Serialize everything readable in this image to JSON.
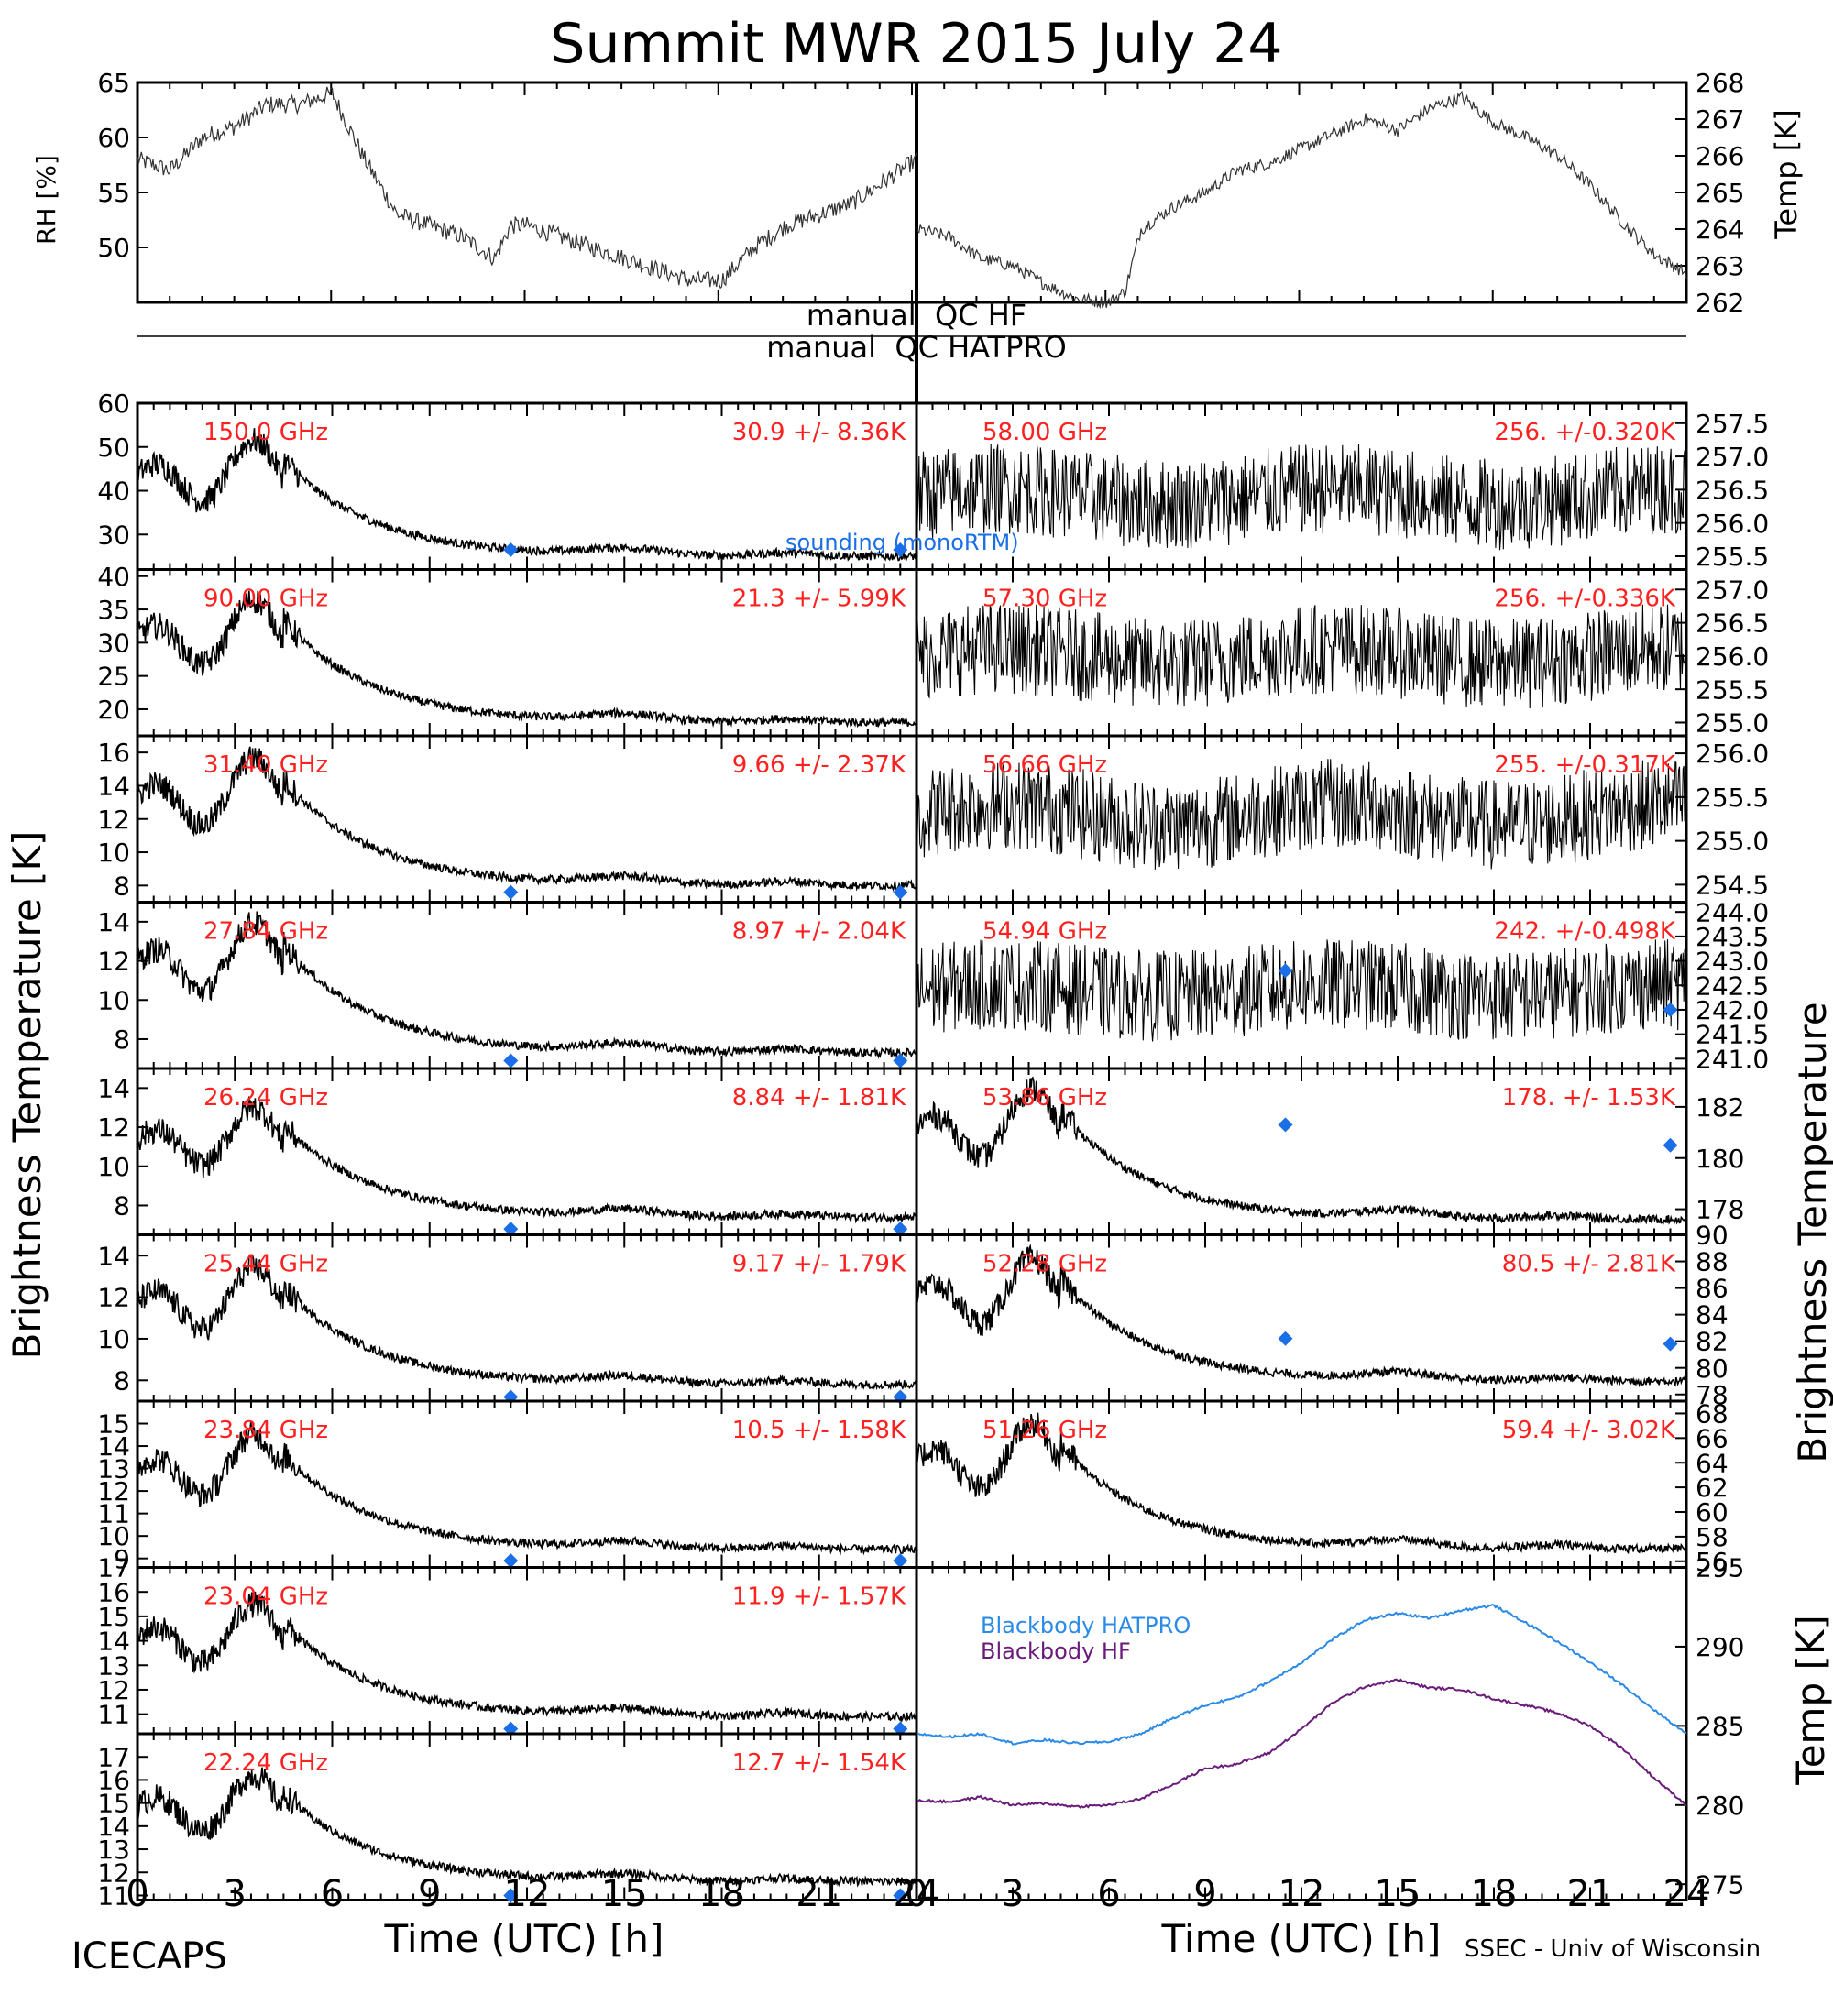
{
  "title": "Summit MWR 2015 July 24",
  "footer_left": "ICECAPS",
  "footer_right": "SSEC - Univ of Wisconsin",
  "xlabel": "Time (UTC) [h]",
  "y_left_big": "Brightness Temperature [K]",
  "y_right_big": "Brightness Temperature",
  "rh_label": "RH [%]",
  "temp_label": "Temp [K]",
  "qc_hf": "manual  QC HF",
  "qc_hatpro": "manual  QC HATPRO",
  "sounding_label": "sounding (monoRTM)",
  "colors": {
    "trace": "#000000",
    "channel_text": "#ff2020",
    "sounding": "#1a6ee8",
    "bb_hatpro": "#2a8ae8",
    "bb_hf": "#6a1a7a"
  },
  "chart_data": {
    "type": "line",
    "x_ticks": [
      "0",
      "3",
      "6",
      "9",
      "12",
      "15",
      "18",
      "21",
      "24"
    ],
    "xlim": [
      0,
      24
    ],
    "met": {
      "rh": {
        "ylim": [
          45,
          65
        ],
        "ticks": [
          "65",
          "60",
          "55",
          "50"
        ],
        "x": [
          0,
          1,
          2,
          3,
          4,
          5,
          6,
          7,
          8,
          9,
          10,
          11,
          11.5,
          12,
          13,
          14,
          15,
          16,
          17,
          18,
          19,
          20,
          21,
          22,
          23,
          24
        ],
        "y": [
          58,
          57,
          60,
          61,
          63,
          63,
          64,
          58,
          53,
          52,
          51,
          49,
          52,
          52,
          51,
          50,
          49,
          48,
          47,
          47,
          50,
          52,
          53,
          54,
          56,
          58
        ]
      },
      "temp": {
        "ylim": [
          262,
          268
        ],
        "ticks": [
          "268",
          "267",
          "266",
          "265",
          "264",
          "263",
          "262"
        ],
        "x": [
          0,
          1,
          2,
          3,
          4,
          5,
          6,
          6.5,
          7,
          8,
          9,
          10,
          11,
          12,
          13,
          14,
          15,
          16,
          17,
          18,
          19,
          20,
          21,
          22,
          23,
          24
        ],
        "y": [
          264,
          263.8,
          263.2,
          263,
          262.5,
          262.1,
          262,
          262.3,
          264,
          264.6,
          265,
          265.6,
          265.8,
          266.2,
          266.6,
          267,
          266.7,
          267.3,
          267.6,
          266.9,
          266.5,
          266,
          265.2,
          264.2,
          263.3,
          262.8
        ]
      }
    },
    "left_channels": [
      {
        "freq": "150.0 GHz",
        "stat": "30.9 +/-  8.36K",
        "ylim": [
          22,
          60
        ],
        "ticks": [
          "60",
          "50",
          "40",
          "30"
        ],
        "base": 25,
        "bump": 26,
        "sound": [
          26.5,
          26.5
        ]
      },
      {
        "freq": "90.00 GHz",
        "stat": "21.3 +/-  5.99K",
        "ylim": [
          16,
          41
        ],
        "ticks": [
          "40",
          "35",
          "30",
          "25",
          "20"
        ],
        "base": 18,
        "bump": 18,
        "sound": null
      },
      {
        "freq": "31.40 GHz",
        "stat": "9.66 +/- 2.37K",
        "ylim": [
          7,
          17
        ],
        "ticks": [
          "16",
          "14",
          "12",
          "10",
          "8"
        ],
        "base": 8,
        "bump": 7.5,
        "sound": [
          7.6,
          7.6
        ]
      },
      {
        "freq": "27.84 GHz",
        "stat": "8.97 +/- 2.04K",
        "ylim": [
          6.5,
          15
        ],
        "ticks": [
          "14",
          "12",
          "10",
          "8"
        ],
        "base": 7.3,
        "bump": 6.5,
        "sound": [
          6.9,
          6.9
        ]
      },
      {
        "freq": "26.24 GHz",
        "stat": "8.84 +/- 1.81K",
        "ylim": [
          6.5,
          15
        ],
        "ticks": [
          "14",
          "12",
          "10",
          "8"
        ],
        "base": 7.4,
        "bump": 5.5,
        "sound": [
          6.8,
          6.8
        ]
      },
      {
        "freq": "25.44 GHz",
        "stat": "9.17 +/- 1.79K",
        "ylim": [
          7,
          15
        ],
        "ticks": [
          "14",
          "12",
          "10",
          "8"
        ],
        "base": 7.8,
        "bump": 5.5,
        "sound": [
          7.2,
          7.2
        ]
      },
      {
        "freq": "23.84 GHz",
        "stat": "10.5 +/- 1.58K",
        "ylim": [
          8.6,
          16
        ],
        "ticks": [
          "15",
          "14",
          "13",
          "12",
          "11",
          "10",
          "9"
        ],
        "base": 9.4,
        "bump": 5,
        "sound": [
          8.9,
          8.9
        ]
      },
      {
        "freq": "23.04 GHz",
        "stat": "11.9 +/- 1.57K",
        "ylim": [
          10.2,
          17
        ],
        "ticks": [
          "17",
          "16",
          "15",
          "14",
          "13",
          "12",
          "11"
        ],
        "base": 10.9,
        "bump": 4.5,
        "sound": [
          10.4,
          10.4
        ]
      },
      {
        "freq": "22.24 GHz",
        "stat": "12.7 +/- 1.54K",
        "ylim": [
          10.8,
          18
        ],
        "ticks": [
          "17",
          "16",
          "15",
          "14",
          "13",
          "12",
          "11"
        ],
        "base": 11.6,
        "bump": 4.5,
        "sound": [
          11,
          11
        ]
      }
    ],
    "right_channels": [
      {
        "freq": "58.00 GHz",
        "stat": "256. +/-0.320K",
        "ylim": [
          255.3,
          257.8
        ],
        "ticks": [
          "257.5",
          "257.0",
          "256.5",
          "256.0",
          "255.5"
        ],
        "noisy": true,
        "center": 256.4,
        "sound": null
      },
      {
        "freq": "57.30 GHz",
        "stat": "256. +/-0.336K",
        "ylim": [
          254.8,
          257.3
        ],
        "ticks": [
          "257.0",
          "256.5",
          "256.0",
          "255.5",
          "255.0"
        ],
        "noisy": true,
        "center": 256.0,
        "sound": null
      },
      {
        "freq": "56.66 GHz",
        "stat": "255. +/-0.317K",
        "ylim": [
          254.3,
          256.2
        ],
        "ticks": [
          "256.0",
          "255.5",
          "255.0",
          "254.5"
        ],
        "noisy": true,
        "center": 255.3,
        "sound": null
      },
      {
        "freq": "54.94 GHz",
        "stat": "242. +/-0.498K",
        "ylim": [
          240.8,
          244.2
        ],
        "ticks": [
          "244.0",
          "243.5",
          "243.0",
          "242.5",
          "242.0",
          "241.5",
          "241.0"
        ],
        "noisy": true,
        "center": 242.4,
        "sound": [
          242.8,
          242.0
        ]
      },
      {
        "freq": "53.86 GHz",
        "stat": "178. +/- 1.53K",
        "ylim": [
          177,
          183.5
        ],
        "ticks": [
          "182",
          "180",
          "178"
        ],
        "noisy": false,
        "base": 177.6,
        "bump": 5,
        "sound": [
          181.3,
          180.5
        ]
      },
      {
        "freq": "52.28 GHz",
        "stat": "80.5 +/- 2.81K",
        "ylim": [
          77.5,
          90
        ],
        "ticks": [
          "90",
          "88",
          "86",
          "84",
          "82",
          "80",
          "78"
        ],
        "noisy": false,
        "base": 79,
        "bump": 9,
        "sound": [
          82.2,
          81.8
        ]
      },
      {
        "freq": "51.26 GHz",
        "stat": "59.4 +/- 3.02K",
        "ylim": [
          55.5,
          69
        ],
        "ticks": [
          "68",
          "66",
          "64",
          "62",
          "60",
          "58",
          "56"
        ],
        "noisy": false,
        "base": 57,
        "bump": 10,
        "sound": null
      }
    ],
    "blackbody": {
      "ylim": [
        274,
        295
      ],
      "ticks": [
        "295",
        "290",
        "285",
        "280",
        "275"
      ],
      "series": [
        {
          "name": "Blackbody HATPRO",
          "x": [
            0,
            1,
            2,
            3,
            4,
            5,
            6,
            7,
            8,
            9,
            10,
            11,
            12,
            13,
            14,
            15,
            16,
            17,
            18,
            19,
            20,
            21,
            22,
            23,
            24
          ],
          "y": [
            284.5,
            284.3,
            284.5,
            283.9,
            284.1,
            283.9,
            284,
            284.5,
            285.5,
            286.3,
            286.8,
            287.8,
            289,
            290.5,
            291.7,
            292.1,
            291.8,
            292.3,
            292.6,
            291.5,
            290.3,
            289,
            287.6,
            286,
            284.5
          ]
        },
        {
          "name": "Blackbody HF",
          "x": [
            0,
            1,
            2,
            3,
            4,
            5,
            6,
            7,
            8,
            9,
            10,
            11,
            12,
            13,
            14,
            15,
            16,
            17,
            18,
            19,
            20,
            21,
            22,
            23,
            24
          ],
          "y": [
            280.3,
            280.2,
            280.5,
            280,
            280.1,
            279.9,
            280,
            280.4,
            281.3,
            282.3,
            282.6,
            283.3,
            284.8,
            286.5,
            287.5,
            287.9,
            287.4,
            287.3,
            286.7,
            286.3,
            285.8,
            285,
            283.6,
            281.7,
            280
          ]
        }
      ]
    }
  }
}
